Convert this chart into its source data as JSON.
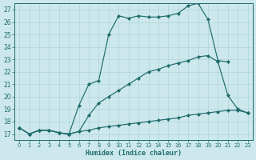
{
  "bg_color": "#cce8ec",
  "line_color": "#1e6b6b",
  "grid_color": "#add4d8",
  "xlabel": "Humidex (Indice chaleur)",
  "xlim": [
    -0.5,
    23.5
  ],
  "ylim": [
    16.5,
    27.5
  ],
  "xticks": [
    0,
    1,
    2,
    3,
    4,
    5,
    6,
    7,
    8,
    9,
    10,
    11,
    12,
    13,
    14,
    15,
    16,
    17,
    18,
    19,
    20,
    21,
    22,
    23
  ],
  "yticks": [
    17,
    18,
    19,
    20,
    21,
    22,
    23,
    24,
    25,
    26,
    27
  ],
  "line1_x": [
    0,
    1,
    2,
    3,
    4,
    5,
    6,
    7,
    8,
    9,
    10,
    11,
    12,
    13,
    14,
    15,
    16,
    17,
    18,
    19,
    20,
    21
  ],
  "line1_y": [
    17.5,
    17.0,
    17.3,
    17.3,
    17.1,
    17.0,
    19.3,
    21.0,
    21.3,
    25.0,
    26.5,
    26.3,
    26.5,
    26.4,
    26.4,
    26.5,
    26.7,
    27.3,
    27.5,
    26.2,
    22.9,
    22.8
  ],
  "line2_x": [
    0,
    1,
    2,
    3,
    4,
    5,
    6,
    7,
    8,
    9,
    10,
    11,
    12,
    13,
    14,
    15,
    16,
    17,
    18,
    19,
    20,
    21,
    22,
    23
  ],
  "line2_y": [
    17.5,
    17.0,
    17.3,
    17.3,
    17.1,
    17.0,
    17.2,
    18.5,
    19.5,
    20.0,
    20.5,
    21.0,
    21.5,
    22.0,
    22.2,
    22.5,
    22.7,
    22.9,
    23.2,
    23.3,
    22.8,
    20.1,
    19.0,
    18.7
  ],
  "line3_x": [
    0,
    1,
    2,
    3,
    4,
    5,
    6,
    7,
    8,
    9,
    10,
    11,
    12,
    13,
    14,
    15,
    16,
    17,
    18,
    19,
    20,
    21,
    22,
    23
  ],
  "line3_y": [
    17.5,
    17.0,
    17.3,
    17.3,
    17.1,
    17.0,
    17.2,
    17.3,
    17.5,
    17.6,
    17.7,
    17.8,
    17.9,
    18.0,
    18.1,
    18.2,
    18.3,
    18.5,
    18.6,
    18.7,
    18.8,
    18.9,
    18.9,
    18.7
  ]
}
